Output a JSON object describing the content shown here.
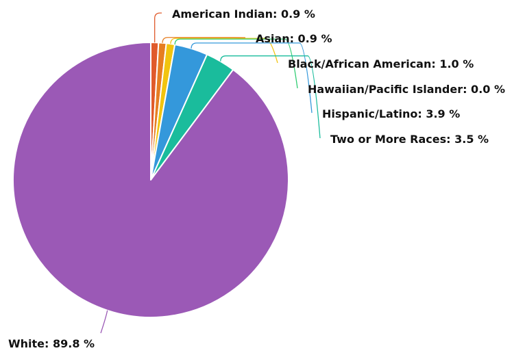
{
  "chart_data": {
    "type": "pie",
    "slices": [
      {
        "label": "American Indian",
        "value": 0.9,
        "display": "American Indian: 0.9 %",
        "color": "#e05a2b"
      },
      {
        "label": "Asian",
        "value": 0.9,
        "display": "Asian: 0.9 %",
        "color": "#e67e22"
      },
      {
        "label": "Black/African American",
        "value": 1.0,
        "display": "Black/African American: 1.0 %",
        "color": "#f1c40f"
      },
      {
        "label": "Hawaiian/Pacific Islander",
        "value": 0.0,
        "display": "Hawaiian/Pacific Islander: 0.0 %",
        "color": "#2ecc71"
      },
      {
        "label": "Hispanic/Latino",
        "value": 3.9,
        "display": "Hispanic/Latino: 3.9 %",
        "color": "#3498db"
      },
      {
        "label": "Two or More Races",
        "value": 3.5,
        "display": "Two or More Races: 3.5 %",
        "color": "#1abc9c"
      },
      {
        "label": "White",
        "value": 89.8,
        "display": "White: 89.8 %",
        "color": "#9b59b6"
      }
    ]
  }
}
